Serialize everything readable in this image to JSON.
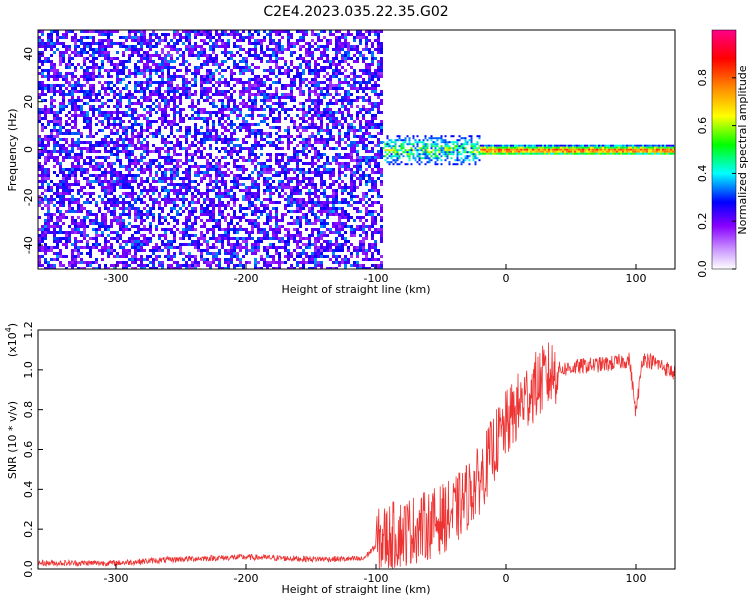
{
  "title": "C2E4.2023.035.22.35.G02",
  "chart_data": [
    {
      "type": "heatmap",
      "xlabel": "Height of straight line (km)",
      "ylabel": "Frequency (Hz)",
      "xlim": [
        -360,
        130
      ],
      "ylim": [
        -50,
        50
      ],
      "xticks": [
        -300,
        -200,
        -100,
        0,
        100
      ],
      "yticks": [
        -40,
        -20,
        0,
        20,
        40
      ],
      "colorbar": {
        "label": "Normalized spectral amplitude",
        "range": [
          0,
          1
        ],
        "ticks": [
          0.0,
          0.2,
          0.4,
          0.6,
          0.8
        ],
        "colormap": [
          "#ffffff",
          "#8800ff",
          "#0000ff",
          "#00ffff",
          "#00ff00",
          "#ffff00",
          "#ff8800",
          "#ff0000",
          "#ff0088"
        ]
      },
      "regions": [
        {
          "x": [
            -360,
            -95
          ],
          "y": [
            -50,
            50
          ],
          "level": 0.12
        },
        {
          "x": [
            -95,
            -20
          ],
          "y": [
            -6,
            6
          ],
          "level": 0.45
        },
        {
          "x": [
            -20,
            130
          ],
          "y": [
            -2,
            2
          ],
          "level": 0.85
        }
      ]
    },
    {
      "type": "line",
      "xlabel": "Height of straight line (km)",
      "ylabel": "SNR (10 * v/v)",
      "yexponent": "(x10",
      "yexponent_power": "4",
      "yexponent_close": ")",
      "xlim": [
        -360,
        130
      ],
      "ylim": [
        0.0,
        1.2
      ],
      "xticks": [
        -300,
        -200,
        -100,
        0,
        100
      ],
      "yticks": [
        0.0,
        0.2,
        0.4,
        0.6,
        0.8,
        1.0,
        1.2
      ],
      "color": "#ee3333",
      "x": [
        -360,
        -300,
        -250,
        -200,
        -150,
        -110,
        -95,
        -80,
        -60,
        -40,
        -20,
        -10,
        0,
        10,
        20,
        30,
        40,
        60,
        80,
        95,
        100,
        105,
        120,
        130
      ],
      "y": [
        0.03,
        0.03,
        0.05,
        0.06,
        0.05,
        0.05,
        0.15,
        0.18,
        0.22,
        0.28,
        0.45,
        0.6,
        0.72,
        0.82,
        0.9,
        0.96,
        1.0,
        1.02,
        1.03,
        1.05,
        0.78,
        1.06,
        1.02,
        0.98
      ]
    }
  ]
}
